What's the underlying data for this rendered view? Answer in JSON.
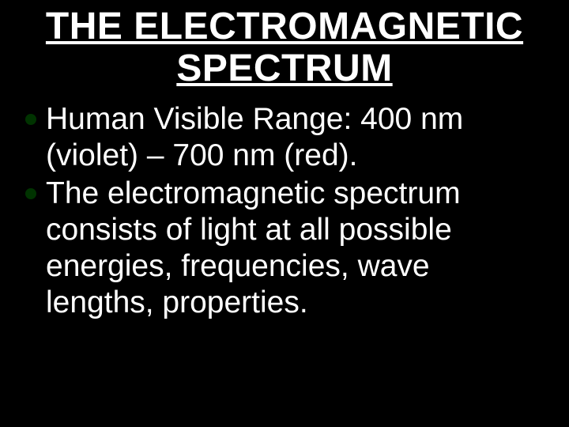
{
  "slide": {
    "title": "THE ELECTROMAGNETIC SPECTRUM",
    "bullets": [
      "Human Visible Range: 400 nm (violet) – 700 nm (red).",
      "The electromagnetic spectrum consists of light at all possible energies, frequencies, wave lengths, properties."
    ],
    "background_color": "#000000",
    "text_color": "#ffffff",
    "bullet_color": "#003300",
    "title_fontsize": 48,
    "body_fontsize": 39
  }
}
